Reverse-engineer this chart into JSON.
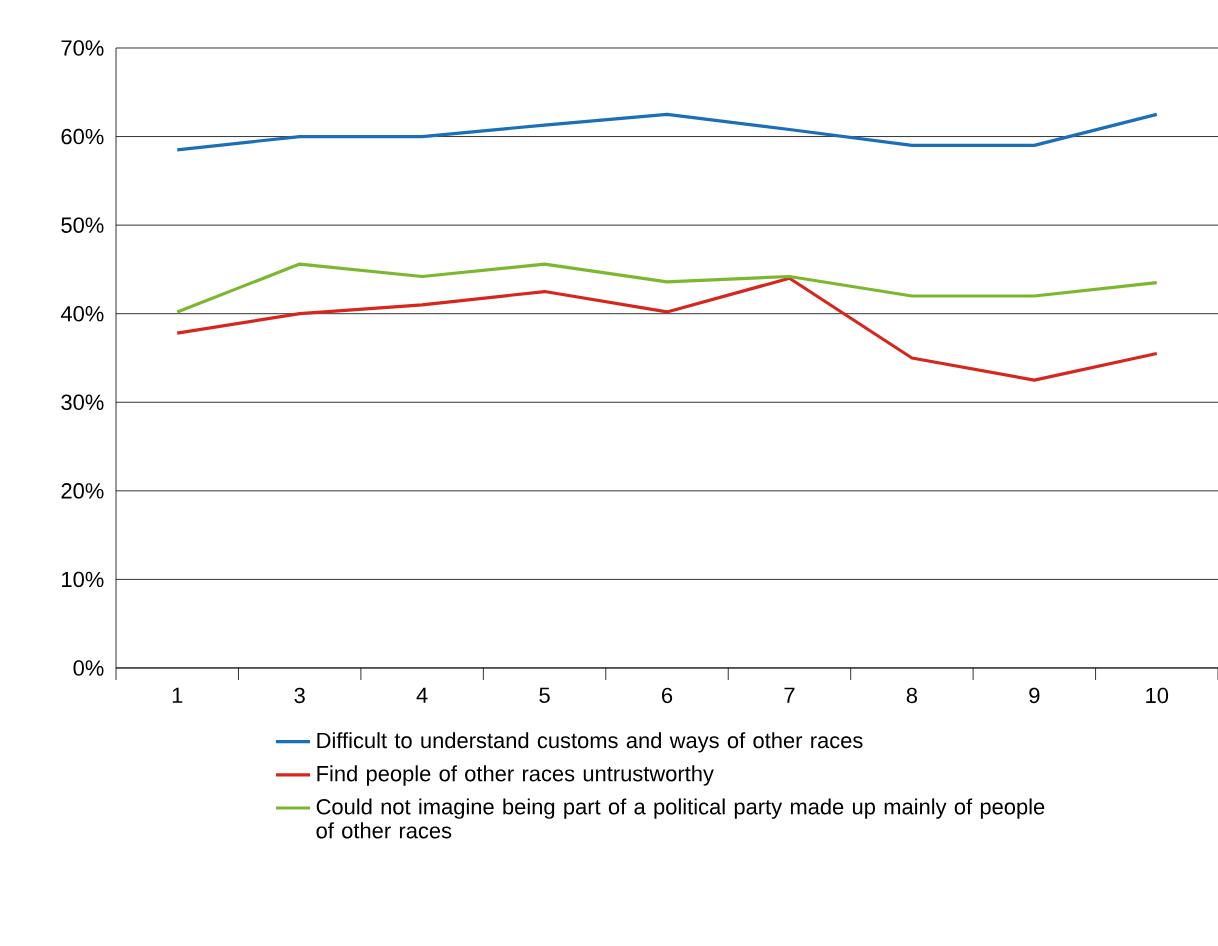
{
  "chart_data": {
    "type": "line",
    "categories": [
      "1",
      "3",
      "4",
      "5",
      "6",
      "7",
      "8",
      "9",
      "10"
    ],
    "series": [
      {
        "name": "Difficult to understand customs and ways of other races",
        "color": "#1a6fb8",
        "values": [
          58.5,
          60,
          60,
          61.3,
          62.5,
          60.8,
          59,
          59,
          62.5
        ]
      },
      {
        "name": "Find people of other races untrustworthy",
        "color": "#d7261e",
        "values": [
          37.8,
          40,
          41,
          42.5,
          40.2,
          44,
          35,
          32.5,
          35.5
        ]
      },
      {
        "name": "Could not imagine being part of a political party made up mainly of people of other races",
        "color": "#7cb82f",
        "values": [
          40.2,
          45.6,
          44.2,
          45.6,
          43.6,
          44.2,
          42,
          42,
          43.5
        ]
      }
    ],
    "ylim": [
      0,
      70
    ],
    "yticks": [
      {
        "value": 0,
        "label": "0%"
      },
      {
        "value": 10,
        "label": "10%"
      },
      {
        "value": 20,
        "label": "20%"
      },
      {
        "value": 30,
        "label": "30%"
      },
      {
        "value": 40,
        "label": "40%"
      },
      {
        "value": 50,
        "label": "50%"
      },
      {
        "value": 60,
        "label": "60%"
      },
      {
        "value": 70,
        "label": "70%"
      }
    ],
    "grid": "y",
    "legend": "bottom",
    "marker": "none",
    "line_style": "solid"
  }
}
